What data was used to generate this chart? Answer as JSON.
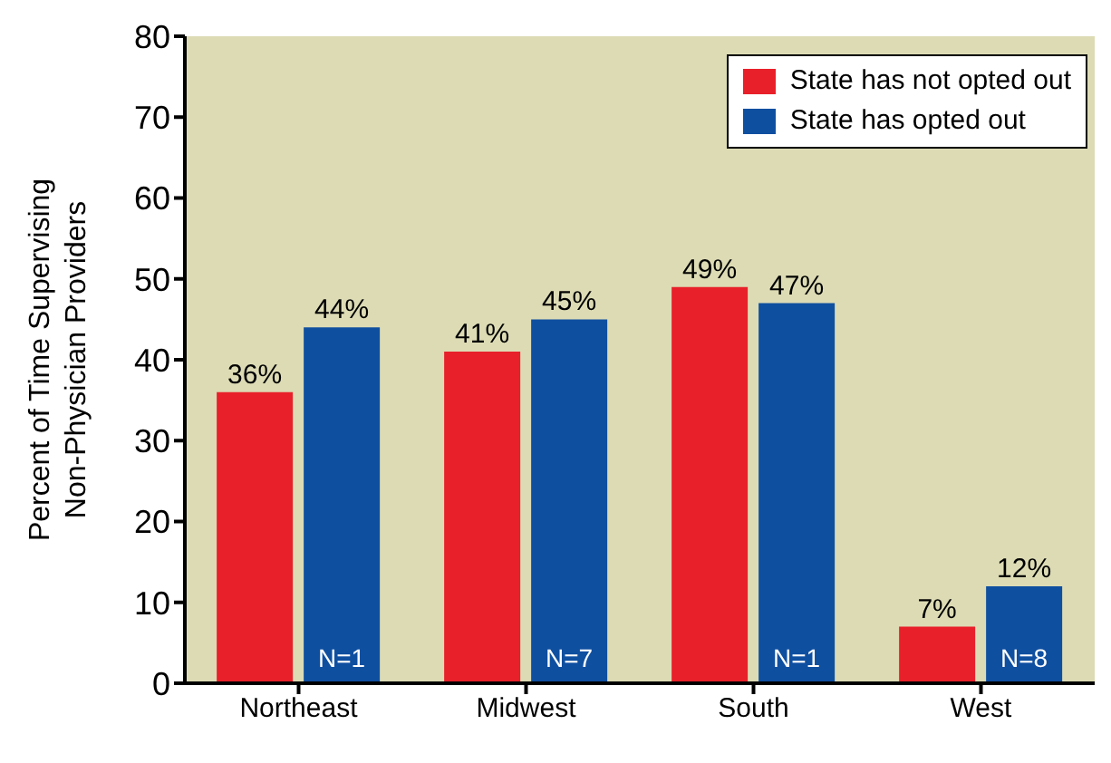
{
  "chart_data": {
    "type": "bar",
    "ylabel": "Percent of Time Supervising\nNon-Physician Providers",
    "categories": [
      "Northeast",
      "Midwest",
      "South",
      "West"
    ],
    "series": [
      {
        "name": "State has not opted out",
        "color": "#e8202a",
        "values": [
          36,
          41,
          49,
          7
        ],
        "value_labels": [
          "36%",
          "41%",
          "49%",
          "7%"
        ]
      },
      {
        "name": "State has opted out",
        "color": "#0f4fa0",
        "values": [
          44,
          45,
          47,
          12
        ],
        "value_labels": [
          "44%",
          "45%",
          "47%",
          "12%"
        ]
      }
    ],
    "annotations": [
      {
        "text": "N=1",
        "x": "Northeast",
        "y": 2
      },
      {
        "text": "N=7",
        "x": "Midwest",
        "y": 2
      },
      {
        "text": "N=1",
        "x": "South",
        "y": 2
      },
      {
        "text": "N=8",
        "x": "West",
        "y": 2
      }
    ],
    "ylim": [
      0,
      80
    ],
    "yticks": [
      0,
      10,
      20,
      30,
      40,
      50,
      60,
      70,
      80
    ],
    "grid": false,
    "legend": "top right"
  }
}
